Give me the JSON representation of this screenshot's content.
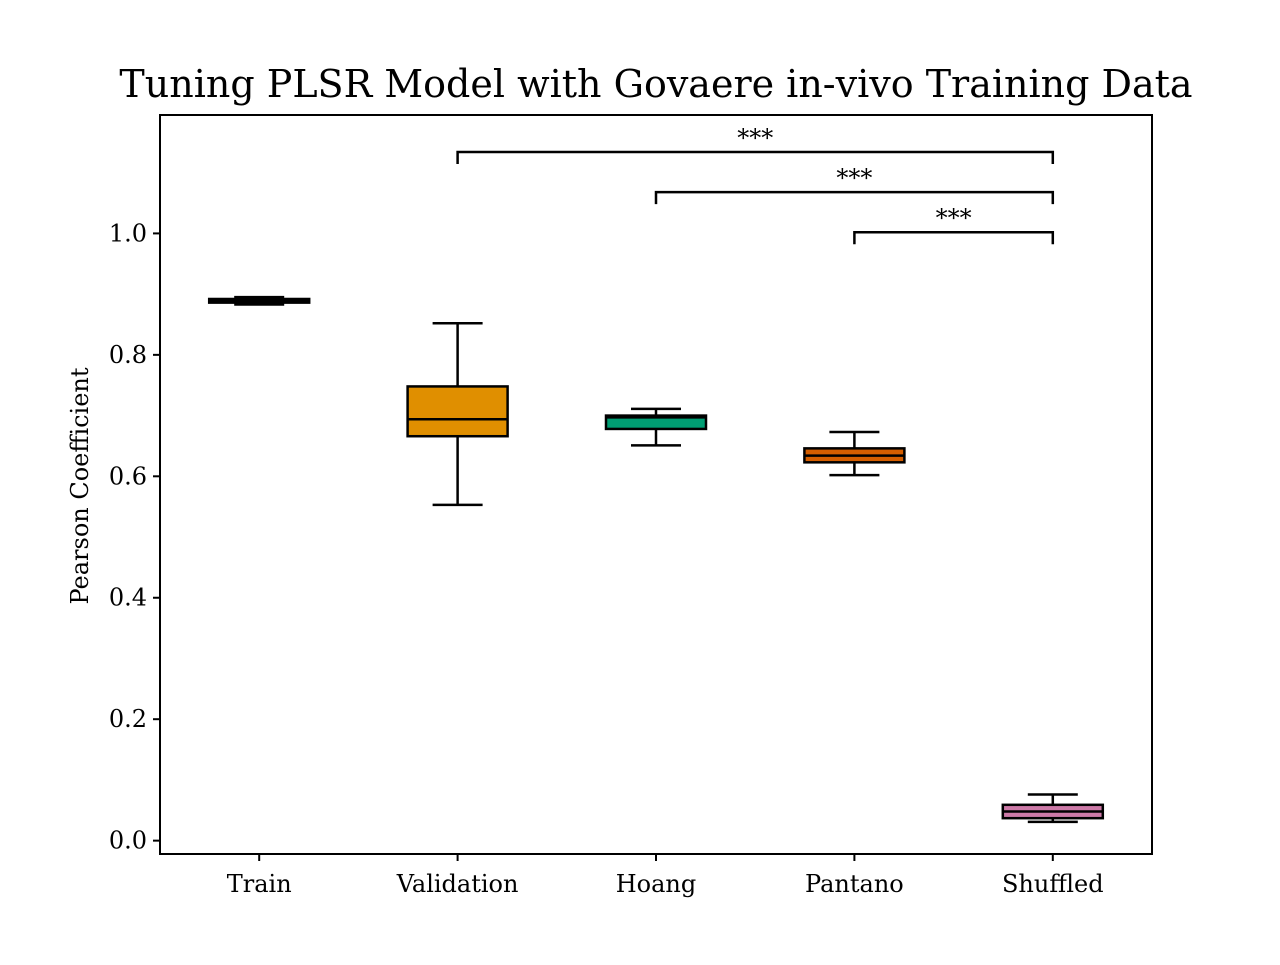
{
  "chart_data": {
    "type": "box",
    "title": "Tuning PLSR Model with Govaere in-vivo Training Data",
    "xlabel": "",
    "ylabel": "Pearson Coefficient",
    "ylim": [
      -0.022,
      1.195
    ],
    "yticks": [
      "0.0",
      "0.2",
      "0.4",
      "0.6",
      "0.8",
      "1.0"
    ],
    "grid": false,
    "categories": [
      "Train",
      "Validation",
      "Hoang",
      "Pantano",
      "Shuffled"
    ],
    "boxes": [
      {
        "category": "Train",
        "whisker_low": 0.883,
        "q1": 0.886,
        "median": 0.889,
        "q3": 0.892,
        "whisker_high": 0.895,
        "color": "#000000"
      },
      {
        "category": "Validation",
        "whisker_low": 0.553,
        "q1": 0.666,
        "median": 0.694,
        "q3": 0.748,
        "whisker_high": 0.852,
        "color": "#e08f00"
      },
      {
        "category": "Hoang",
        "whisker_low": 0.651,
        "q1": 0.678,
        "median": 0.697,
        "q3": 0.7,
        "whisker_high": 0.711,
        "color": "#009e73"
      },
      {
        "category": "Pantano",
        "whisker_low": 0.602,
        "q1": 0.623,
        "median": 0.634,
        "q3": 0.646,
        "whisker_high": 0.673,
        "color": "#d55e00"
      },
      {
        "category": "Shuffled",
        "whisker_low": 0.031,
        "q1": 0.037,
        "median": 0.048,
        "q3": 0.059,
        "whisker_high": 0.076,
        "color": "#cc79a7"
      }
    ],
    "significance": [
      {
        "from": "Pantano",
        "to": "Shuffled",
        "label": "***",
        "y": 1.002
      },
      {
        "from": "Hoang",
        "to": "Shuffled",
        "label": "***",
        "y": 1.068
      },
      {
        "from": "Validation",
        "to": "Shuffled",
        "label": "***",
        "y": 1.134
      }
    ]
  }
}
